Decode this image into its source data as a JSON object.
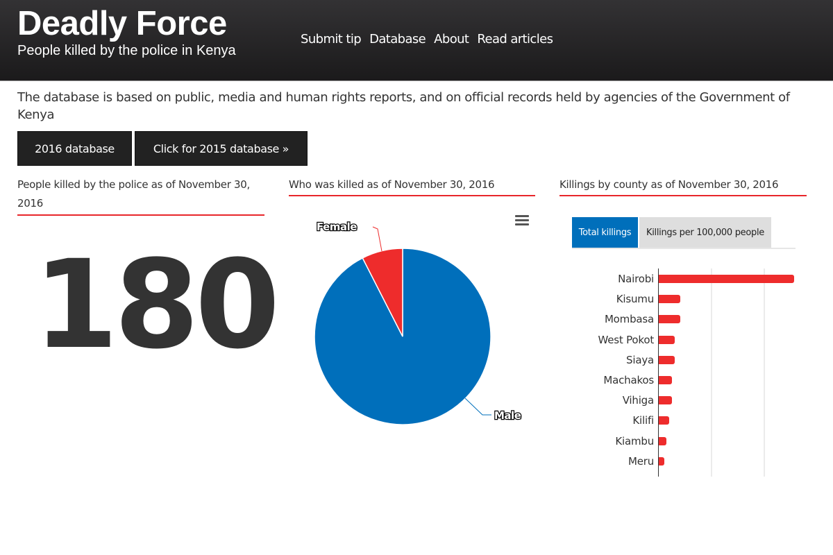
{
  "header": {
    "title": "Deadly Force",
    "subtitle": "People killed by the police in Kenya",
    "nav": [
      {
        "label": "Submit tip"
      },
      {
        "label": "Database"
      },
      {
        "label": "About"
      },
      {
        "label": "Read articles"
      }
    ]
  },
  "intro": "The database is based on public, media and human rights reports, and on official records held by agencies of the Government of Kenya",
  "buttons": {
    "db2016": "2016 database",
    "db2015": "Click for 2015 database »"
  },
  "panels": {
    "total": {
      "title": "People killed by the police as of November 30, 2016",
      "value": "180"
    },
    "gender": {
      "title": "Who was killed as of November 30, 2016",
      "menu_icon": "hamburger-menu-icon"
    },
    "county": {
      "title": "Killings by county as of November 30, 2016",
      "tabs": [
        {
          "label": "Total killings",
          "active": true
        },
        {
          "label": "Killings per 100,000 people",
          "active": false
        }
      ]
    }
  },
  "colors": {
    "accent_red": "#e8262a",
    "male_blue": "#006fbb",
    "female_red": "#ee2c2c",
    "header_dark": "#222222"
  },
  "chart_data": [
    {
      "type": "pie",
      "title": "Who was killed as of November 30, 2016",
      "categories": [
        "Female",
        "Male"
      ],
      "values": [
        7.5,
        92.5
      ],
      "colors": [
        "#ee2c2c",
        "#006fbb"
      ],
      "legend": "none (data labels)"
    },
    {
      "type": "bar",
      "orientation": "horizontal",
      "title": "Killings by county as of November 30, 2016",
      "categories": [
        "Nairobi",
        "Kisumu",
        "Mombasa",
        "West Pokot",
        "Siaya",
        "Machakos",
        "Vihiga",
        "Kilifi",
        "Kiambu",
        "Meru"
      ],
      "values": [
        51,
        8,
        8,
        6,
        6,
        5,
        5,
        4,
        3,
        2
      ],
      "xlabel": "",
      "ylabel": "",
      "xlim": [
        0,
        60
      ],
      "grid": true,
      "gridlines_at": [
        20,
        40
      ],
      "color": "#ee2c2c"
    }
  ]
}
